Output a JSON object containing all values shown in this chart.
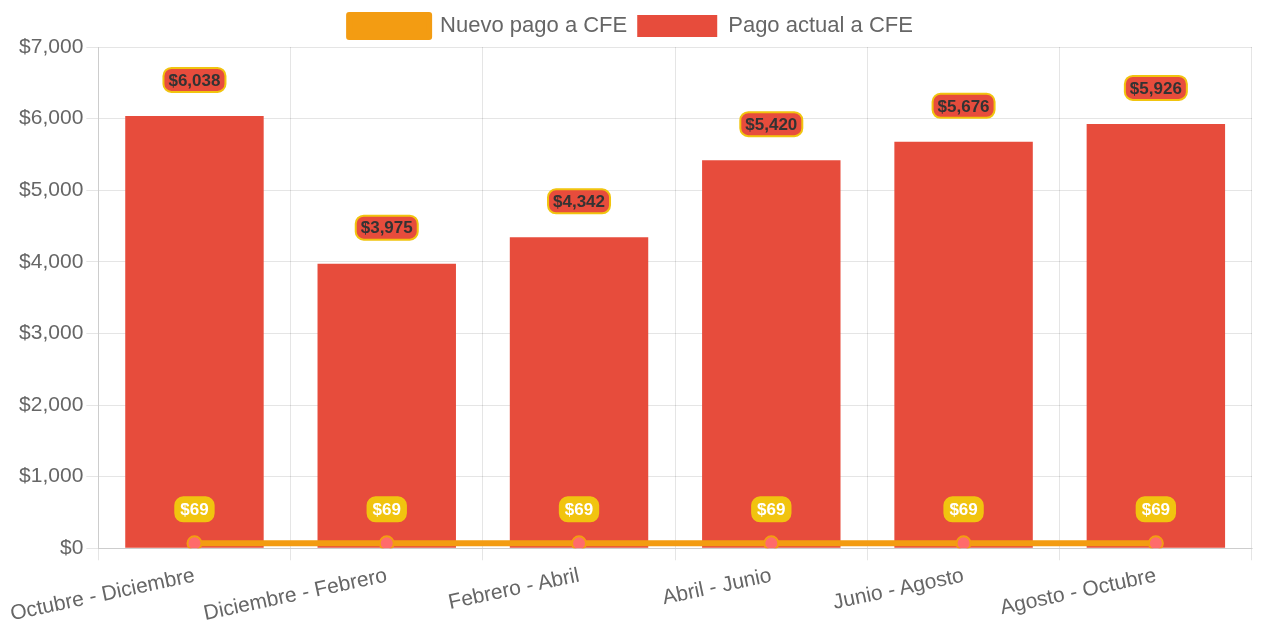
{
  "chart_data": {
    "type": "bar",
    "categories": [
      "Octubre - Diciembre",
      "Diciembre - Febrero",
      "Febrero - Abril",
      "Abril - Junio",
      "Junio - Agosto",
      "Agosto - Octubre"
    ],
    "series": [
      {
        "name": "Nuevo pago a CFE",
        "type": "line",
        "color": "#f39c12",
        "values": [
          69,
          69,
          69,
          69,
          69,
          69
        ],
        "value_labels": [
          "$69",
          "$69",
          "$69",
          "$69",
          "$69",
          "$69"
        ]
      },
      {
        "name": "Pago actual a CFE",
        "color": "#e74c3c",
        "values": [
          6038,
          3975,
          4342,
          5420,
          5676,
          5926
        ],
        "value_labels": [
          "$6,038",
          "$3,975",
          "$4,342",
          "$5,420",
          "$5,676",
          "$5,926"
        ]
      }
    ],
    "ylim": [
      0,
      7000
    ],
    "yticks": [
      {
        "value": 0,
        "label": "$0"
      },
      {
        "value": 1000,
        "label": "$1,000"
      },
      {
        "value": 2000,
        "label": "$2,000"
      },
      {
        "value": 3000,
        "label": "$3,000"
      },
      {
        "value": 4000,
        "label": "$4,000"
      },
      {
        "value": 5000,
        "label": "$5,000"
      },
      {
        "value": 6000,
        "label": "$6,000"
      },
      {
        "value": 7000,
        "label": "$7,000"
      }
    ],
    "grid": true,
    "legend": "top",
    "marker": "circle",
    "line_style": "solid"
  }
}
